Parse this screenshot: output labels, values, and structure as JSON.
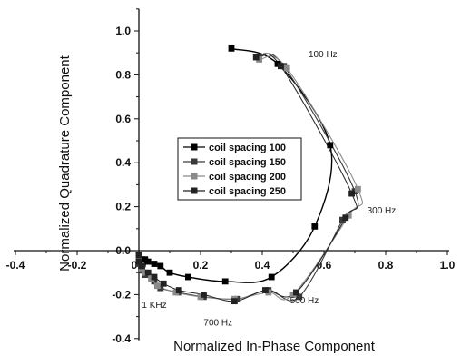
{
  "chart_data": {
    "type": "line",
    "xlabel": "Normalized In-Phase Component",
    "ylabel": "Normalized Quadrature Component",
    "xlim": [
      -0.4,
      1.0
    ],
    "ylim": [
      -0.4,
      1.1
    ],
    "x_ticks": [
      -0.4,
      -0.2,
      0.0,
      0.2,
      0.4,
      0.6,
      0.8,
      1.0
    ],
    "x_tick_labels": [
      "-0.4",
      "-0.2",
      "0.0",
      "0.2",
      "0.4",
      "0.6",
      "0.8",
      "1.0"
    ],
    "y_ticks": [
      -0.4,
      -0.2,
      0.0,
      0.2,
      0.4,
      0.6,
      0.8,
      1.0
    ],
    "y_tick_labels": [
      "-0.4",
      "-0.2",
      "0.0",
      "0.2",
      "0.4",
      "0.6",
      "0.8",
      "1.0"
    ],
    "grid": false,
    "legend_position": "center-left",
    "annotations": [
      {
        "text": "100 Hz",
        "x": 0.55,
        "y": 0.88
      },
      {
        "text": "300 Hz",
        "x": 0.74,
        "y": 0.17
      },
      {
        "text": "500 Hz",
        "x": 0.49,
        "y": -0.24
      },
      {
        "text": "700 Hz",
        "x": 0.21,
        "y": -0.34
      },
      {
        "text": "1 KHz",
        "x": 0.01,
        "y": -0.26
      }
    ],
    "series": [
      {
        "name": "coil spacing 100",
        "color": "#000000",
        "marker": "square",
        "points": [
          [
            0.3,
            0.92
          ],
          [
            0.45,
            0.85
          ],
          [
            0.62,
            0.48
          ],
          [
            0.57,
            0.11
          ],
          [
            0.43,
            -0.12
          ],
          [
            0.28,
            -0.14
          ],
          [
            0.16,
            -0.12
          ],
          [
            0.1,
            -0.1
          ],
          [
            0.07,
            -0.07
          ],
          [
            0.05,
            -0.06
          ],
          [
            0.03,
            -0.05
          ],
          [
            0.02,
            -0.04
          ],
          [
            0.01,
            -0.04
          ],
          [
            0.0,
            -0.03
          ],
          [
            0.0,
            -0.02
          ]
        ]
      },
      {
        "name": "coil spacing 150",
        "color": "#3a3a3a",
        "marker": "square",
        "points": [
          [
            0.39,
            0.88
          ],
          [
            0.47,
            0.84
          ],
          [
            0.7,
            0.27
          ],
          [
            0.66,
            0.14
          ],
          [
            0.52,
            -0.21
          ],
          [
            0.42,
            -0.18
          ],
          [
            0.32,
            -0.22
          ],
          [
            0.21,
            -0.21
          ],
          [
            0.13,
            -0.19
          ],
          [
            0.07,
            -0.17
          ],
          [
            0.05,
            -0.14
          ],
          [
            0.02,
            -0.11
          ],
          [
            0.01,
            -0.09
          ],
          [
            0.0,
            -0.06
          ],
          [
            0.0,
            -0.04
          ]
        ]
      },
      {
        "name": "coil spacing 200",
        "color": "#8a8a8a",
        "marker": "square",
        "points": [
          [
            0.39,
            0.87
          ],
          [
            0.48,
            0.83
          ],
          [
            0.71,
            0.28
          ],
          [
            0.68,
            0.16
          ],
          [
            0.5,
            -0.2
          ],
          [
            0.42,
            -0.19
          ],
          [
            0.31,
            -0.22
          ],
          [
            0.2,
            -0.21
          ],
          [
            0.12,
            -0.19
          ],
          [
            0.06,
            -0.16
          ],
          [
            0.04,
            -0.13
          ],
          [
            0.02,
            -0.1
          ],
          [
            0.01,
            -0.08
          ],
          [
            0.0,
            -0.05
          ],
          [
            0.0,
            -0.03
          ]
        ]
      },
      {
        "name": "coil spacing 250",
        "color": "#222222",
        "marker": "square",
        "points": [
          [
            0.38,
            0.88
          ],
          [
            0.46,
            0.84
          ],
          [
            0.69,
            0.26
          ],
          [
            0.67,
            0.15
          ],
          [
            0.51,
            -0.19
          ],
          [
            0.41,
            -0.18
          ],
          [
            0.31,
            -0.23
          ],
          [
            0.21,
            -0.2
          ],
          [
            0.13,
            -0.18
          ],
          [
            0.08,
            -0.15
          ],
          [
            0.05,
            -0.12
          ],
          [
            0.03,
            -0.1
          ],
          [
            0.01,
            -0.07
          ],
          [
            0.0,
            -0.05
          ],
          [
            0.0,
            -0.02
          ]
        ]
      }
    ]
  }
}
